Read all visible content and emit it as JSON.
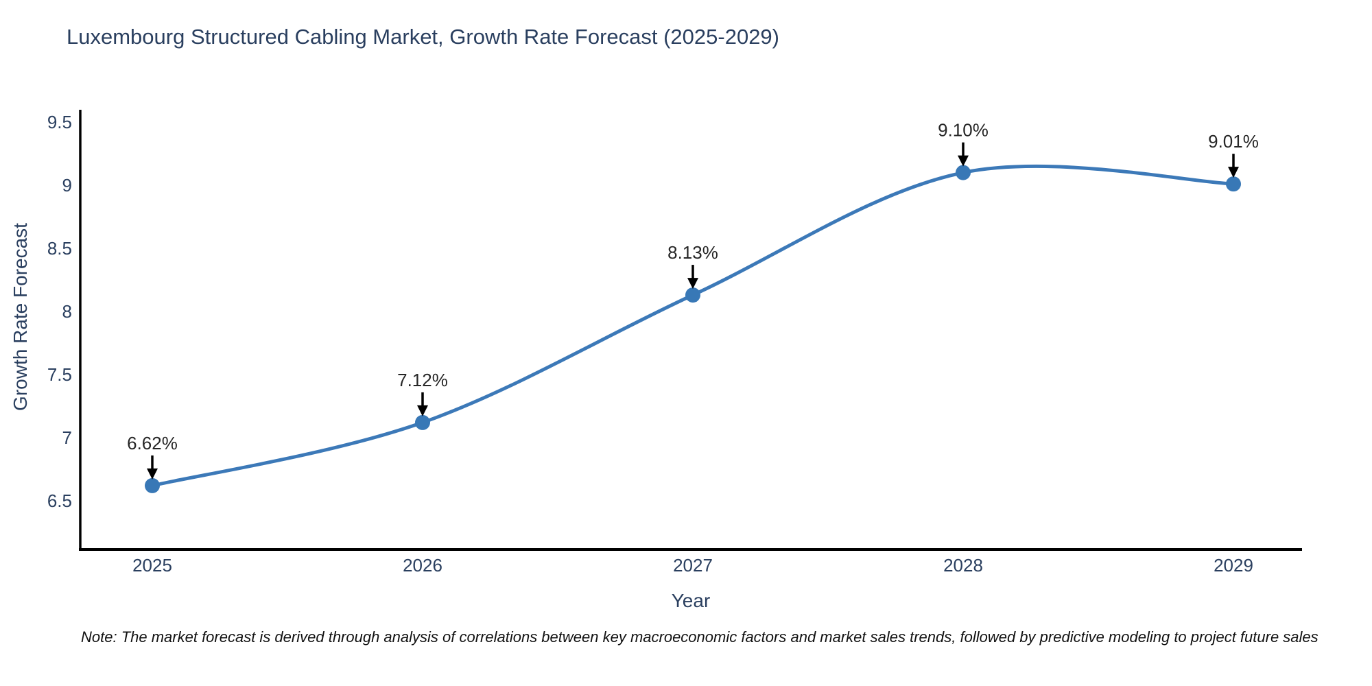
{
  "title": "Luxembourg Structured Cabling Market, Growth Rate Forecast (2025-2029)",
  "note": "Note: The market forecast is derived through analysis of correlations between key macroeconomic factors and market sales trends, followed by predictive modeling to project future sales",
  "chart_data": {
    "type": "line",
    "title": "Luxembourg Structured Cabling Market, Growth Rate Forecast (2025-2029)",
    "xlabel": "Year",
    "ylabel": "Growth Rate Forecast",
    "x": [
      2025,
      2026,
      2027,
      2028,
      2029
    ],
    "values": [
      6.62,
      7.12,
      8.13,
      9.1,
      9.01
    ],
    "point_labels": [
      "6.62%",
      "7.12%",
      "8.13%",
      "9.10%",
      "9.01%"
    ],
    "y_ticks": [
      6.5,
      7,
      7.5,
      8,
      8.5,
      9,
      9.5
    ],
    "x_ticks": [
      2025,
      2026,
      2027,
      2028,
      2029
    ],
    "ylim": [
      6.12,
      9.79
    ],
    "line_shape": "spline",
    "grid": false,
    "legend_position": "none",
    "colors": {
      "line": "#3c79b8",
      "marker": "#3878b6",
      "axis_line": "#000000",
      "tick_text": "#2a3f5f",
      "annotation_text": "#262626",
      "annotation_arrow": "#000000"
    }
  }
}
